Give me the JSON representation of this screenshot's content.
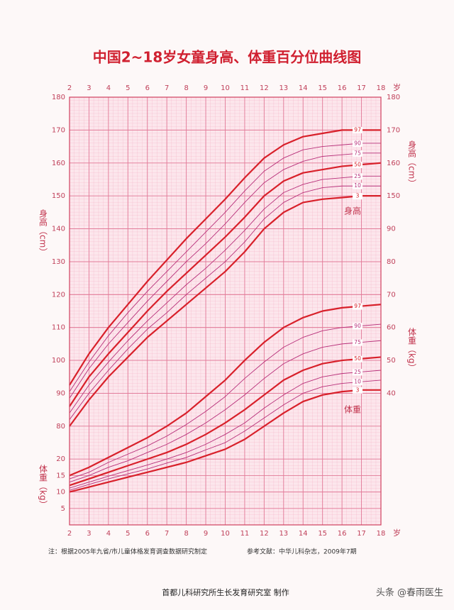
{
  "chart_data": {
    "type": "line",
    "title": "中国2~18岁女童身高、体重百分位曲线图",
    "x": [
      2,
      3,
      4,
      5,
      6,
      7,
      8,
      9,
      10,
      11,
      12,
      13,
      14,
      15,
      16,
      17,
      18
    ],
    "xlim": [
      2,
      18
    ],
    "xticks": [
      2,
      3,
      4,
      5,
      6,
      7,
      8,
      9,
      10,
      11,
      12,
      13,
      14,
      15,
      16,
      17,
      18
    ],
    "x_unit": "岁",
    "y_label": "身高（cm）",
    "y2_label": "体重（kg）",
    "ylim": [
      50,
      180
    ],
    "yticks": [
      80,
      90,
      100,
      110,
      120,
      130,
      140,
      150,
      160,
      170,
      180
    ],
    "yticks_right": [
      150,
      160,
      170,
      180
    ],
    "y2lim": [
      0,
      130
    ],
    "y2ticks": [
      40,
      50,
      60,
      70,
      80,
      90
    ],
    "y2ticks_left": [
      5,
      10,
      15,
      20
    ],
    "grid": true,
    "annotations": [
      "身高",
      "体重"
    ],
    "series": [
      {
        "name": "97",
        "axis": "y",
        "color": "#d8202a",
        "width": 2.2,
        "values": [
          92.5,
          102,
          110,
          117,
          124,
          130.5,
          137,
          143,
          149,
          155.5,
          161.5,
          165.5,
          168,
          169,
          170,
          170,
          170
        ]
      },
      {
        "name": "90",
        "axis": "y",
        "color": "#b8307a",
        "width": 0.9,
        "values": [
          90.5,
          99.5,
          107.5,
          114.5,
          121,
          127,
          133,
          139,
          145,
          151.5,
          157.5,
          161.5,
          164,
          165,
          165.5,
          166,
          166
        ]
      },
      {
        "name": "75",
        "axis": "y",
        "color": "#b8307a",
        "width": 0.9,
        "values": [
          88.5,
          97.5,
          105,
          111.5,
          118,
          124,
          130,
          135.5,
          141.5,
          148,
          154,
          158,
          160.5,
          162,
          162.5,
          163,
          163
        ]
      },
      {
        "name": "50",
        "axis": "y",
        "color": "#d8202a",
        "width": 2.2,
        "values": [
          86,
          95,
          102,
          108.5,
          115,
          121,
          126.5,
          132,
          137.5,
          143.5,
          150,
          154.5,
          157,
          158,
          159,
          159.5,
          160
        ]
      },
      {
        "name": "25",
        "axis": "y",
        "color": "#b8307a",
        "width": 0.9,
        "values": [
          84,
          92.5,
          99.5,
          106,
          112,
          117.5,
          123,
          128,
          133.5,
          139.5,
          146,
          151,
          153.5,
          155,
          155.5,
          156,
          156
        ]
      },
      {
        "name": "10",
        "axis": "y",
        "color": "#b8307a",
        "width": 0.9,
        "values": [
          82,
          90,
          97,
          103.5,
          109.5,
          114.5,
          120,
          125,
          130,
          136,
          143,
          148,
          151,
          152.5,
          153,
          153,
          153
        ]
      },
      {
        "name": "3",
        "axis": "y",
        "color": "#d8202a",
        "width": 2.2,
        "values": [
          80,
          88,
          95,
          101,
          107,
          112,
          117,
          122,
          127,
          133,
          140,
          145,
          148,
          149,
          149.5,
          150,
          150
        ]
      },
      {
        "name": "97",
        "axis": "y2",
        "color": "#d8202a",
        "width": 2.2,
        "values": [
          15,
          17.5,
          20.5,
          23.5,
          26.5,
          30,
          34,
          39,
          44,
          50,
          55.5,
          60,
          63,
          65,
          66,
          66.5,
          67
        ]
      },
      {
        "name": "90",
        "axis": "y2",
        "color": "#b8307a",
        "width": 0.9,
        "values": [
          14,
          16,
          19,
          21.5,
          24,
          27,
          30.5,
          34.5,
          39,
          44.5,
          49.5,
          54,
          57,
          59,
          60,
          60.5,
          61
        ]
      },
      {
        "name": "75",
        "axis": "y2",
        "color": "#b8307a",
        "width": 0.9,
        "values": [
          13,
          15,
          17.5,
          19.5,
          22,
          24.5,
          27.5,
          31,
          35,
          39.5,
          44.5,
          49,
          52,
          54,
          55,
          55.5,
          56
        ]
      },
      {
        "name": "50",
        "axis": "y2",
        "color": "#d8202a",
        "width": 2.2,
        "values": [
          12,
          14,
          16,
          18,
          20,
          22,
          24.5,
          27.5,
          31,
          35,
          39.5,
          44,
          47,
          49,
          50,
          50.5,
          51
        ]
      },
      {
        "name": "25",
        "axis": "y2",
        "color": "#b8307a",
        "width": 0.9,
        "values": [
          11.2,
          13,
          14.8,
          16.5,
          18.2,
          20,
          22,
          24.5,
          27.5,
          31,
          35.5,
          39.5,
          43,
          45,
          46,
          46.5,
          47
        ]
      },
      {
        "name": "10",
        "axis": "y2",
        "color": "#b8307a",
        "width": 0.9,
        "values": [
          10.5,
          12.3,
          14,
          15.5,
          17,
          18.8,
          20.5,
          22.8,
          25,
          28.5,
          32.5,
          36.5,
          40,
          42,
          43,
          43.5,
          44
        ]
      },
      {
        "name": "3",
        "axis": "y2",
        "color": "#d8202a",
        "width": 2.2,
        "values": [
          10,
          11.5,
          13,
          14.5,
          16,
          17.5,
          19,
          21,
          23,
          26,
          30,
          34,
          37.5,
          39.5,
          40.5,
          41,
          41
        ]
      }
    ]
  },
  "notes": [
    "注：根据2005年九省/市儿童体格发育调查数据研究制定",
    "参考文献：中华儿科杂志，2009年7期"
  ],
  "footer": "首都儿科研究所生长发育研究室  制作",
  "watermark": "头条 @春雨医生"
}
